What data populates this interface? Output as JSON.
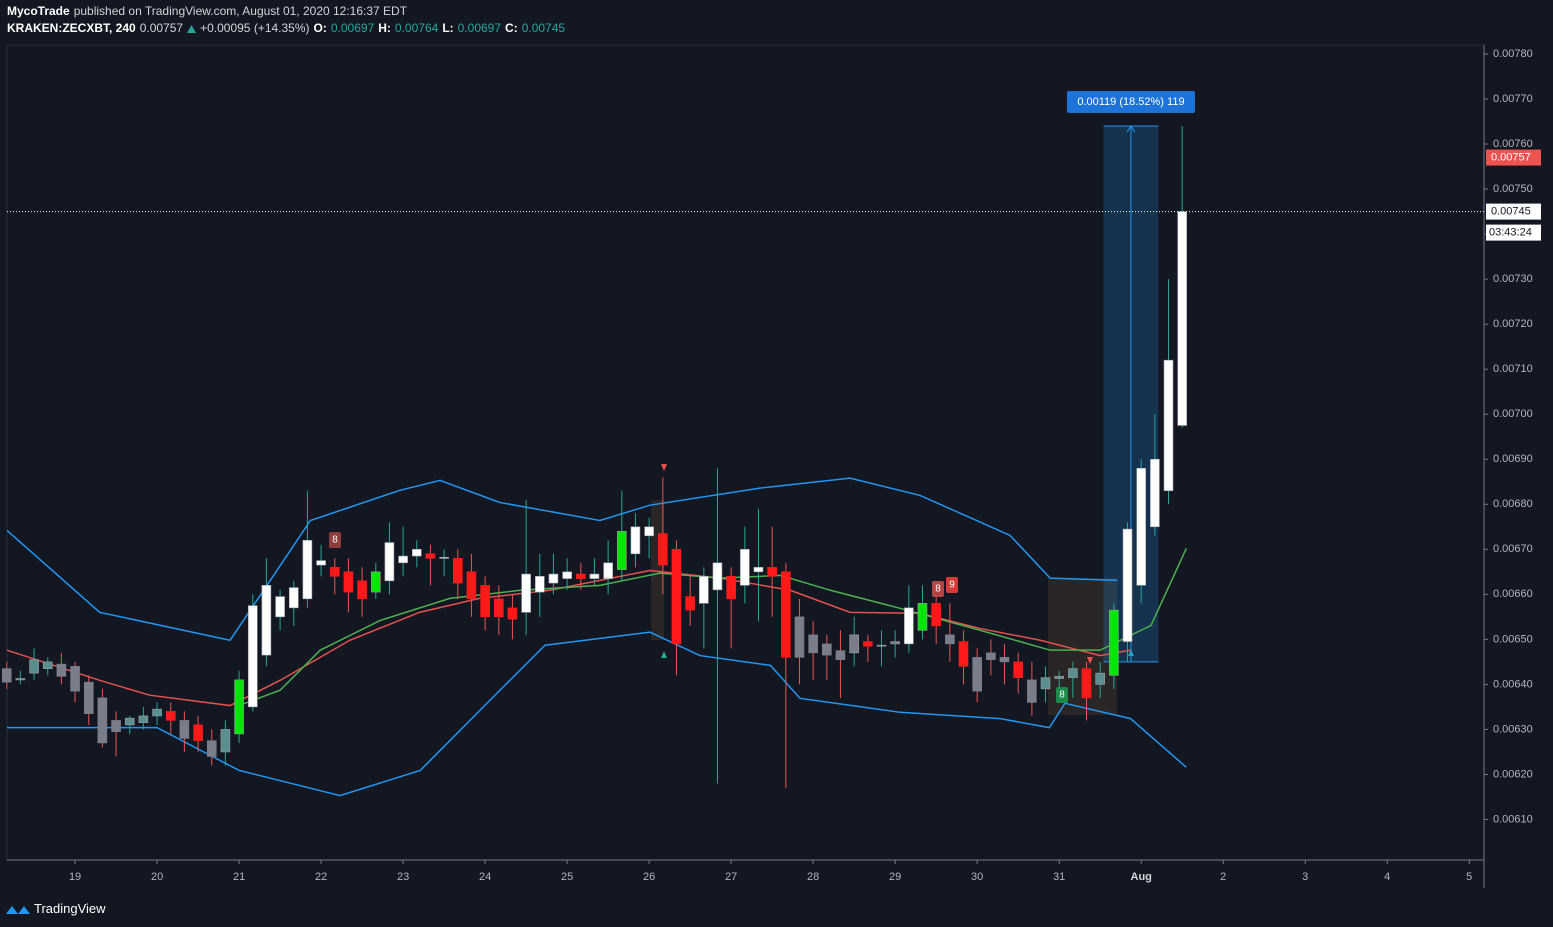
{
  "header": {
    "author": "MycoTrade",
    "published": "published on TradingView.com, August 01, 2020 12:16:37 EDT",
    "symbol": "KRAKEN:ZECXBT, 240",
    "last": "0.00757",
    "change": "+0.00095 (+14.35%)",
    "ohlc": [
      [
        "O:",
        "0.00697"
      ],
      [
        "H:",
        "0.00764"
      ],
      [
        "L:",
        "0.00697"
      ],
      [
        "C:",
        "0.00745"
      ]
    ]
  },
  "footer": {
    "brand": "TradingView"
  },
  "chart_data": {
    "type": "candlestick",
    "x": [
      18.167,
      18.333,
      18.5,
      18.667,
      18.833,
      19,
      19.167,
      19.333,
      19.5,
      19.667,
      19.833,
      20,
      20.167,
      20.333,
      20.5,
      20.667,
      20.833,
      21,
      21.167,
      21.333,
      21.5,
      21.667,
      21.833,
      22,
      22.167,
      22.333,
      22.5,
      22.667,
      22.833,
      23,
      23.167,
      23.333,
      23.5,
      23.667,
      23.833,
      24,
      24.167,
      24.333,
      24.5,
      24.667,
      24.833,
      25,
      25.167,
      25.333,
      25.5,
      25.667,
      25.833,
      26,
      26.167,
      26.333,
      26.5,
      26.667,
      26.833,
      27,
      27.167,
      27.333,
      27.5,
      27.667,
      27.833,
      28,
      28.167,
      28.333,
      28.5,
      28.667,
      28.833,
      29,
      29.167,
      29.333,
      29.5,
      29.667,
      29.833,
      30,
      30.167,
      30.333,
      30.5,
      30.667,
      30.833,
      31,
      31.167,
      31.333,
      31.5,
      31.667,
      31.833,
      32,
      32.167,
      32.333,
      32.5
    ],
    "open": [
      0.006435,
      0.00641,
      0.006425,
      0.006435,
      0.006445,
      0.00644,
      0.006405,
      0.00637,
      0.00632,
      0.00631,
      0.006315,
      0.00633,
      0.00634,
      0.00632,
      0.00631,
      0.006275,
      0.00625,
      0.00629,
      0.00635,
      0.006465,
      0.00655,
      0.00657,
      0.00659,
      0.006665,
      0.00666,
      0.00665,
      0.00663,
      0.006605,
      0.00663,
      0.00667,
      0.006685,
      0.00669,
      0.00668,
      0.00668,
      0.00665,
      0.00662,
      0.00659,
      0.00657,
      0.00656,
      0.006605,
      0.006625,
      0.006635,
      0.006645,
      0.006635,
      0.006635,
      0.006655,
      0.00669,
      0.00673,
      0.006735,
      0.0067,
      0.006595,
      0.00658,
      0.00661,
      0.00664,
      0.00662,
      0.00665,
      0.00666,
      0.00665,
      0.00655,
      0.00651,
      0.00649,
      0.006475,
      0.00647,
      0.006495,
      0.006485,
      0.00649,
      0.00649,
      0.00652,
      0.00658,
      0.00651,
      0.006495,
      0.00646,
      0.00647,
      0.00646,
      0.00645,
      0.00641,
      0.00639,
      0.006413,
      0.006415,
      0.006435,
      0.0064,
      0.00642,
      0.006495,
      0.00662,
      0.00675,
      0.00683,
      0.006975
    ],
    "high": [
      0.00645,
      0.00643,
      0.00648,
      0.00646,
      0.00647,
      0.00645,
      0.00642,
      0.00639,
      0.00634,
      0.00633,
      0.00635,
      0.00636,
      0.00636,
      0.00634,
      0.00633,
      0.0063,
      0.00632,
      0.00643,
      0.0066,
      0.00668,
      0.00661,
      0.00663,
      0.00683,
      0.00671,
      0.00668,
      0.00668,
      0.00666,
      0.00667,
      0.00676,
      0.00675,
      0.00672,
      0.00671,
      0.0067,
      0.0067,
      0.00669,
      0.00664,
      0.00662,
      0.0066,
      0.00681,
      0.00669,
      0.00669,
      0.00668,
      0.00667,
      0.00668,
      0.00672,
      0.00683,
      0.00678,
      0.00677,
      0.00686,
      0.00672,
      0.00664,
      0.00666,
      0.00688,
      0.00666,
      0.00675,
      0.00679,
      0.00675,
      0.00667,
      0.00659,
      0.00654,
      0.00651,
      0.00652,
      0.00655,
      0.00651,
      0.00652,
      0.00652,
      0.00662,
      0.00662,
      0.0066,
      0.00658,
      0.00652,
      0.00648,
      0.0065,
      0.00649,
      0.00647,
      0.00645,
      0.00644,
      0.00643,
      0.00645,
      0.00645,
      0.00645,
      0.00658,
      0.00676,
      0.0069,
      0.007,
      0.0073,
      0.00764
    ],
    "low": [
      0.00639,
      0.0064,
      0.00641,
      0.00642,
      0.0064,
      0.00636,
      0.00631,
      0.00626,
      0.00624,
      0.00629,
      0.0063,
      0.00631,
      0.00629,
      0.00625,
      0.00625,
      0.00622,
      0.00622,
      0.00627,
      0.00634,
      0.00644,
      0.00652,
      0.00653,
      0.00657,
      0.00664,
      0.0066,
      0.00656,
      0.00655,
      0.00659,
      0.0066,
      0.00664,
      0.00666,
      0.00662,
      0.00664,
      0.00659,
      0.00655,
      0.00652,
      0.00651,
      0.0065,
      0.00651,
      0.00655,
      0.0066,
      0.00661,
      0.00661,
      0.00662,
      0.0066,
      0.00663,
      0.00666,
      0.00668,
      0.0066,
      0.00642,
      0.00653,
      0.00648,
      0.00618,
      0.00648,
      0.00658,
      0.00654,
      0.00655,
      0.00617,
      0.0064,
      0.00641,
      0.00641,
      0.00637,
      0.00644,
      0.00645,
      0.00644,
      0.00646,
      0.00647,
      0.0065,
      0.00649,
      0.00645,
      0.0064,
      0.00636,
      0.00642,
      0.0064,
      0.00638,
      0.00633,
      0.00636,
      0.00639,
      0.00637,
      0.00632,
      0.00637,
      0.00639,
      0.00645,
      0.00658,
      0.00673,
      0.0068,
      0.00697
    ],
    "close": [
      0.006405,
      0.006413,
      0.006455,
      0.00645,
      0.006418,
      0.006385,
      0.006335,
      0.00627,
      0.006295,
      0.006325,
      0.00633,
      0.006345,
      0.00632,
      0.00628,
      0.006275,
      0.00624,
      0.0063,
      0.00641,
      0.006575,
      0.00662,
      0.006595,
      0.006615,
      0.00672,
      0.006675,
      0.00664,
      0.006605,
      0.00659,
      0.00665,
      0.006715,
      0.006685,
      0.0067,
      0.00668,
      0.006682,
      0.006625,
      0.00659,
      0.00655,
      0.00655,
      0.006545,
      0.006645,
      0.00664,
      0.006645,
      0.00665,
      0.006635,
      0.006645,
      0.00667,
      0.00674,
      0.00675,
      0.00675,
      0.006665,
      0.00649,
      0.006565,
      0.00664,
      0.00667,
      0.00659,
      0.0067,
      0.00666,
      0.00664,
      0.00646,
      0.00646,
      0.00647,
      0.006465,
      0.006455,
      0.00651,
      0.006485,
      0.006487,
      0.006495,
      0.00657,
      0.00658,
      0.00653,
      0.00649,
      0.00644,
      0.006385,
      0.006455,
      0.00645,
      0.006415,
      0.00636,
      0.006415,
      0.006418,
      0.006435,
      0.00637,
      0.006425,
      0.006565,
      0.006745,
      0.00688,
      0.0069,
      0.00712,
      0.00745
    ],
    "colors": [
      "#7a7e8a",
      "#5b8e8f",
      "#5b8e8f",
      "#5b8e8f",
      "#7a7e8a",
      "#7a7e8a",
      "#7a7e8a",
      "#7a7e8a",
      "#7a7e8a",
      "#5b8e8f",
      "#5b8e8f",
      "#5b8e8f",
      "#ff1a1a",
      "#7a7e8a",
      "#ff1a1a",
      "#7a7e8a",
      "#5b8e8f",
      "#00e600",
      "#ffffff",
      "#ffffff",
      "#ffffff",
      "#ffffff",
      "#ffffff",
      "#ffffff",
      "#ff1a1a",
      "#ff1a1a",
      "#ff1a1a",
      "#00e600",
      "#ffffff",
      "#ffffff",
      "#ffffff",
      "#ff1a1a",
      "#ffffff",
      "#ff1a1a",
      "#ff1a1a",
      "#ff1a1a",
      "#ff1a1a",
      "#ff1a1a",
      "#ffffff",
      "#ffffff",
      "#ffffff",
      "#ffffff",
      "#ff1a1a",
      "#ffffff",
      "#ffffff",
      "#00e600",
      "#ffffff",
      "#ffffff",
      "#ff1a1a",
      "#ff1a1a",
      "#ff1a1a",
      "#ffffff",
      "#ffffff",
      "#ff1a1a",
      "#ffffff",
      "#ffffff",
      "#ff1a1a",
      "#ff1a1a",
      "#7a7e8a",
      "#7a7e8a",
      "#7a7e8a",
      "#7a7e8a",
      "#7a7e8a",
      "#ff1a1a",
      "#7a7e8a",
      "#7a7e8a",
      "#ffffff",
      "#00e600",
      "#ff1a1a",
      "#7a7e8a",
      "#ff1a1a",
      "#7a7e8a",
      "#7a7e8a",
      "#7a7e8a",
      "#ff1a1a",
      "#7a7e8a",
      "#5b8e8f",
      "#5b8e8f",
      "#5b8e8f",
      "#ff1a1a",
      "#5b8e8f",
      "#00e600",
      "#ffffff",
      "#ffffff",
      "#ffffff",
      "#ffffff",
      "#ffffff"
    ],
    "wick_up_color": "#26a69a",
    "wick_down_color": "#ef5350",
    "lines": [
      {
        "color": "#2196f3",
        "x": [
          18.17,
          19.3,
          20.89,
          21.87,
          22.96,
          23.45,
          24.18,
          25.4,
          26.01,
          27.35,
          28.45,
          29.3,
          30.4,
          30.89,
          31.71
        ],
        "values": [
          0.006742,
          0.00656,
          0.006498,
          0.006764,
          0.006831,
          0.006853,
          0.006804,
          0.006764,
          0.006798,
          0.006836,
          0.006858,
          0.00682,
          0.006731,
          0.006636,
          0.006631
        ]
      },
      {
        "color": "#2196f3",
        "x": [
          18.17,
          20,
          21,
          22.23,
          23.21,
          24.18,
          24.73,
          26.01,
          26.62,
          27.48,
          27.84,
          29.06,
          30.28,
          30.88,
          31.07,
          31.87,
          32.55
        ],
        "values": [
          0.006304,
          0.006304,
          0.006209,
          0.006153,
          0.006209,
          0.006387,
          0.006487,
          0.006516,
          0.006464,
          0.006442,
          0.006369,
          0.006338,
          0.006324,
          0.006304,
          0.006358,
          0.006324,
          0.006216
        ]
      },
      {
        "color": "#e5514f",
        "x": [
          18.17,
          19.3,
          19.91,
          20.89,
          21.5,
          22.35,
          23.2,
          23.93,
          24.79,
          26.01,
          26.87,
          27.72,
          28.45,
          29.3,
          30.04,
          30.77,
          31.5,
          31.87
        ],
        "values": [
          0.006476,
          0.006409,
          0.006376,
          0.006353,
          0.006409,
          0.006498,
          0.00656,
          0.006591,
          0.006609,
          0.006653,
          0.006636,
          0.006609,
          0.00656,
          0.006558,
          0.006524,
          0.006498,
          0.006464,
          0.006476
        ]
      },
      {
        "color": "#4caf50",
        "x": [
          21,
          21.5,
          21.99,
          22.72,
          23.57,
          24.43,
          25.4,
          26.13,
          26.87,
          27.6,
          28.21,
          29.06,
          30.04,
          30.89,
          31.5,
          32.12,
          32.55
        ],
        "values": [
          0.006353,
          0.006387,
          0.006476,
          0.006542,
          0.006591,
          0.006609,
          0.00662,
          0.006647,
          0.006636,
          0.006642,
          0.006609,
          0.006569,
          0.00652,
          0.006476,
          0.006476,
          0.006531,
          0.006702
        ]
      }
    ],
    "measure": {
      "label": "0.00119 (18.52%) 119",
      "low": 0.00645,
      "high": 0.00764,
      "x": [
        31.54,
        32.21
      ]
    },
    "price_labels": [
      {
        "value": 0.00757,
        "label": "0.00757",
        "color": "#ef5350"
      },
      {
        "value": 0.00745,
        "label": "0.00745",
        "color": "#ffffff"
      }
    ],
    "countdown": "03:43:24",
    "markers": [
      {
        "label": "8",
        "color": "#8e3b3b"
      },
      {
        "label": "8",
        "color": "#b54444"
      },
      {
        "label": "9",
        "color": "#d83a3a"
      },
      {
        "label": "8",
        "color": "#1e8a4a"
      }
    ],
    "xlim": [
      18.17,
      36.18
    ],
    "xticks": [
      19,
      20,
      21,
      22,
      23,
      24,
      25,
      26,
      27,
      28,
      29,
      30,
      31,
      {
        "value": 32,
        "label": "Aug"
      },
      {
        "value": 33,
        "label": "2"
      },
      {
        "value": 34,
        "label": "3"
      },
      {
        "value": 35,
        "label": "4"
      },
      {
        "value": 36,
        "label": "5"
      }
    ],
    "ylim": [
      0.00601,
      0.00782
    ],
    "yticks": [
      {
        "value": 0.0061,
        "label": "0.00610"
      },
      {
        "value": 0.0062,
        "label": "0.00620"
      },
      {
        "value": 0.0063,
        "label": "0.00630"
      },
      {
        "value": 0.0064,
        "label": "0.00640"
      },
      {
        "value": 0.0065,
        "label": "0.00650"
      },
      {
        "value": 0.0066,
        "label": "0.00660"
      },
      {
        "value": 0.0067,
        "label": "0.00670"
      },
      {
        "value": 0.0068,
        "label": "0.00680"
      },
      {
        "value": 0.0069,
        "label": "0.00690"
      },
      {
        "value": 0.007,
        "label": "0.00700"
      },
      {
        "value": 0.0071,
        "label": "0.00710"
      },
      {
        "value": 0.0072,
        "label": "0.00720"
      },
      {
        "value": 0.0073,
        "label": "0.00730"
      },
      {
        "value": 0.0074,
        "label": "0.00740"
      },
      {
        "value": 0.0075,
        "label": "0.00750"
      },
      {
        "value": 0.0076,
        "label": "0.00760"
      },
      {
        "value": 0.0077,
        "label": "0.00770"
      },
      {
        "value": 0.0078,
        "label": "0.00780"
      }
    ]
  }
}
